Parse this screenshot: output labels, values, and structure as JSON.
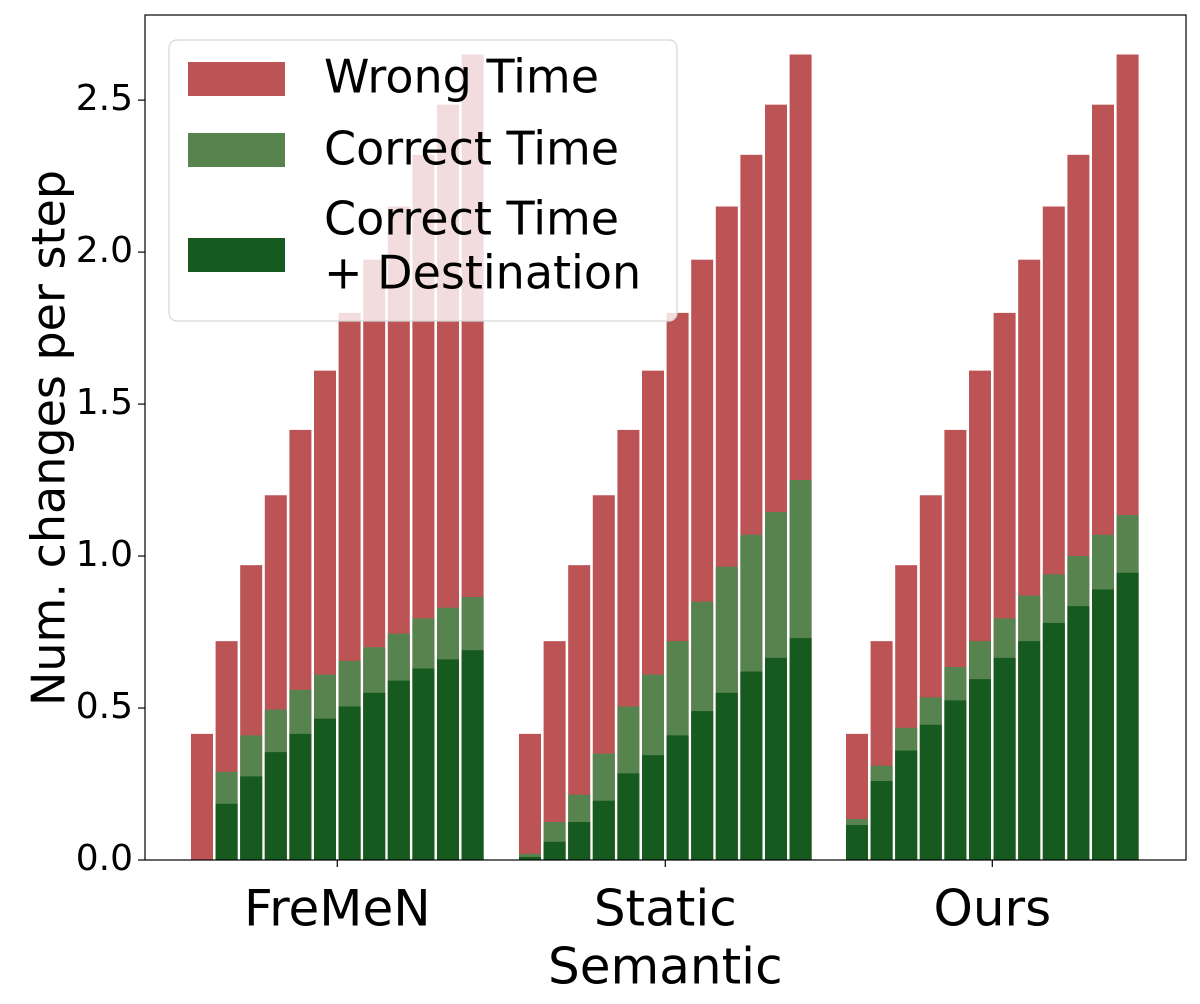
{
  "chart_data": {
    "type": "bar",
    "stacked": true,
    "title": "",
    "xlabel": "",
    "ylabel": "Num. changes per step",
    "ylim": [
      0,
      2.78
    ],
    "yticks": [
      "0.0",
      "0.5",
      "1.0",
      "1.5",
      "2.0",
      "2.5"
    ],
    "ytick_values": [
      0,
      0.5,
      1.0,
      1.5,
      2.0,
      2.5
    ],
    "legend_position": "top-left",
    "grid": false,
    "groups": [
      {
        "name_lines": [
          "FreMeN"
        ],
        "bars": 12,
        "total": [
          0.415,
          0.72,
          0.97,
          1.2,
          1.415,
          1.61,
          1.8,
          1.975,
          2.15,
          2.32,
          2.485,
          2.65
        ],
        "correct_time": [
          0.0,
          0.29,
          0.41,
          0.495,
          0.56,
          0.61,
          0.655,
          0.7,
          0.745,
          0.795,
          0.83,
          0.865
        ],
        "correct_time_destination": [
          0.0,
          0.185,
          0.275,
          0.355,
          0.415,
          0.465,
          0.505,
          0.55,
          0.59,
          0.63,
          0.66,
          0.69
        ]
      },
      {
        "name_lines": [
          "Static",
          "Semantic"
        ],
        "bars": 12,
        "total": [
          0.415,
          0.72,
          0.97,
          1.2,
          1.415,
          1.61,
          1.8,
          1.975,
          2.15,
          2.32,
          2.485,
          2.65
        ],
        "correct_time": [
          0.02,
          0.125,
          0.215,
          0.35,
          0.505,
          0.61,
          0.72,
          0.85,
          0.965,
          1.07,
          1.145,
          1.25
        ],
        "correct_time_destination": [
          0.01,
          0.06,
          0.125,
          0.195,
          0.285,
          0.345,
          0.41,
          0.49,
          0.55,
          0.62,
          0.665,
          0.73
        ]
      },
      {
        "name_lines": [
          "Ours"
        ],
        "bars": 12,
        "total": [
          0.415,
          0.72,
          0.97,
          1.2,
          1.415,
          1.61,
          1.8,
          1.975,
          2.15,
          2.32,
          2.485,
          2.65
        ],
        "correct_time": [
          0.135,
          0.31,
          0.435,
          0.535,
          0.635,
          0.72,
          0.795,
          0.87,
          0.94,
          1.0,
          1.07,
          1.135
        ],
        "correct_time_destination": [
          0.115,
          0.26,
          0.36,
          0.445,
          0.525,
          0.595,
          0.665,
          0.72,
          0.78,
          0.835,
          0.89,
          0.945
        ]
      }
    ],
    "series": [
      {
        "name": "Wrong Time",
        "key": "total",
        "color": "#bc5355",
        "name_lines": [
          "Wrong Time"
        ]
      },
      {
        "name": "Correct Time",
        "key": "correct_time",
        "color": "#57834f",
        "name_lines": [
          "Correct Time"
        ]
      },
      {
        "name": "Correct Time + Destination",
        "key": "correct_time_destination",
        "color": "#165a20",
        "name_lines": [
          "Correct Time",
          "+ Destination"
        ]
      }
    ]
  }
}
